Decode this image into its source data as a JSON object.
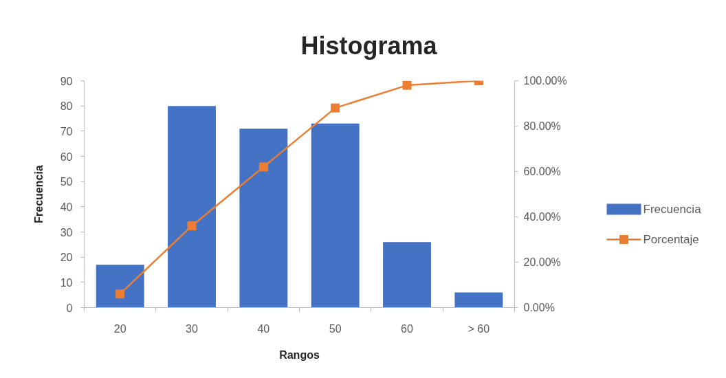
{
  "chart_data": {
    "type": "bar",
    "title": "Histograma",
    "xlabel": "Rangos",
    "ylabel": "Frecuencia",
    "categories": [
      "20",
      "30",
      "40",
      "50",
      "60",
      "> 60"
    ],
    "series": [
      {
        "name": "Frecuencia",
        "color": "#4472c4",
        "values": [
          17,
          80,
          71,
          73,
          26,
          6
        ]
      },
      {
        "name": "Porcentaje",
        "type": "line",
        "axis": "y2",
        "color": "#ed7d31",
        "values": [
          6,
          36,
          62,
          88,
          98,
          100
        ]
      }
    ],
    "ylim": [
      0,
      90
    ],
    "yticks": [
      0,
      10,
      20,
      30,
      40,
      50,
      60,
      70,
      80,
      90
    ],
    "y2lim": [
      0,
      100
    ],
    "y2ticks": [
      {
        "value": 0,
        "label": "0.00%"
      },
      {
        "value": 20,
        "label": "20.00%"
      },
      {
        "value": 40,
        "label": "40.00%"
      },
      {
        "value": 60,
        "label": "60.00%"
      },
      {
        "value": 80,
        "label": "80.00%"
      },
      {
        "value": 100,
        "label": "100.00%"
      }
    ],
    "marker": "square",
    "legend": "right",
    "grid": false
  }
}
